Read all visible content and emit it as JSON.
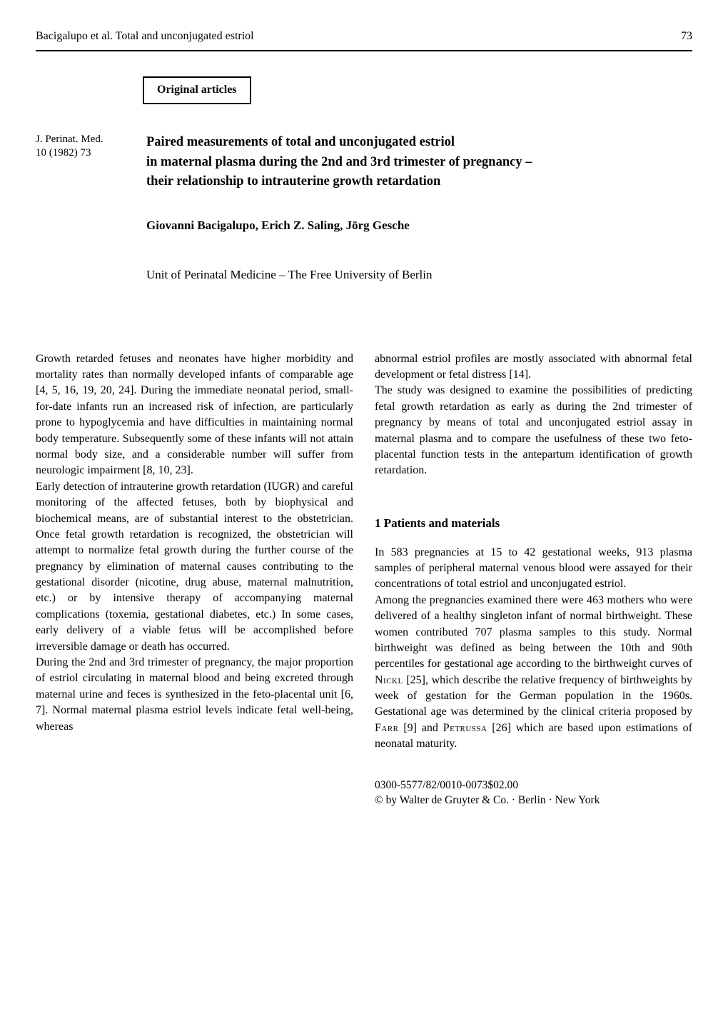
{
  "header": {
    "running_head": "Bacigalupo et al. Total and unconjugated estriol",
    "page_number": "73"
  },
  "badge": "Original articles",
  "journal": {
    "line1": "J. Perinat. Med.",
    "line2": "10 (1982) 73"
  },
  "title": {
    "line1": "Paired measurements of total and unconjugated estriol",
    "line2": "in maternal plasma during the 2nd and 3rd trimester of pregnancy –",
    "line3": "their relationship to intrauterine growth retardation"
  },
  "authors": "Giovanni Bacigalupo, Erich Z. Saling, Jörg Gesche",
  "affiliation": "Unit of Perinatal Medicine – The Free University of Berlin",
  "col1": {
    "p1": "Growth retarded fetuses and neonates have higher morbidity and mortality rates than normally developed infants of comparable age [4, 5, 16, 19, 20, 24]. During the immediate neonatal period, small-for-date infants run an increased risk of infection, are particularly prone to hypoglycemia and have difficulties in maintaining normal body temperature. Subsequently some of these infants will not attain normal body size, and a considerable number will suffer from neurologic impairment [8, 10, 23].",
    "p2": "Early detection of intrauterine growth retardation (IUGR) and careful monitoring of the affected fetuses, both by biophysical and biochemical means, are of substantial interest to the obstetrician. Once fetal growth retardation is recognized, the obstetrician will attempt to normalize fetal growth during the further course of the pregnancy by elimination of maternal causes contributing to the gestational disorder (nicotine, drug abuse, maternal malnutrition, etc.) or by intensive therapy of accompanying maternal complications (toxemia, gestational diabetes, etc.) In some cases, early delivery of a viable fetus will be accomplished before irreversible damage or death has occurred.",
    "p3": "During the 2nd and 3rd trimester of pregnancy, the major proportion of estriol circulating in maternal blood and being excreted through maternal urine and feces is synthesized in the feto-placental unit [6, 7]. Normal maternal plasma estriol levels indicate fetal well-being, whereas"
  },
  "col2": {
    "p1": "abnormal estriol profiles are mostly associated with abnormal fetal development or fetal distress [14].",
    "p2": "The study was designed to examine the possibilities of predicting fetal growth retardation as early as during the 2nd trimester of pregnancy by means of total and unconjugated estriol assay in maternal plasma and to compare the usefulness of these two feto-placental function tests in the antepartum identification of growth retardation.",
    "section_heading": "1  Patients and materials",
    "p3": "In 583 pregnancies at 15 to 42 gestational weeks, 913 plasma samples of peripheral maternal venous blood were assayed for their concentrations of total estriol and unconjugated estriol.",
    "p4a": "Among the pregnancies examined there were 463 mothers who were delivered of a healthy singleton infant of normal birthweight. These women contributed 707 plasma samples to this study. Normal birthweight was defined as being between the 10th and 90th percentiles for gestational age according to the birthweight curves of ",
    "sc1": "Nickl",
    "p4b": " [25], which describe the relative frequency of birthweights by week of gestation for the German population in the 1960s. Gestational age was determined by the clinical criteria proposed by ",
    "sc2": "Farr",
    "p4c": " [9] and ",
    "sc3": "Petrussa",
    "p4d": " [26] which are based upon estimations of neonatal maturity."
  },
  "footer": {
    "line1": "0300-5577/82/0010-0073$02.00",
    "line2": "© by Walter de Gruyter & Co. · Berlin · New York"
  }
}
